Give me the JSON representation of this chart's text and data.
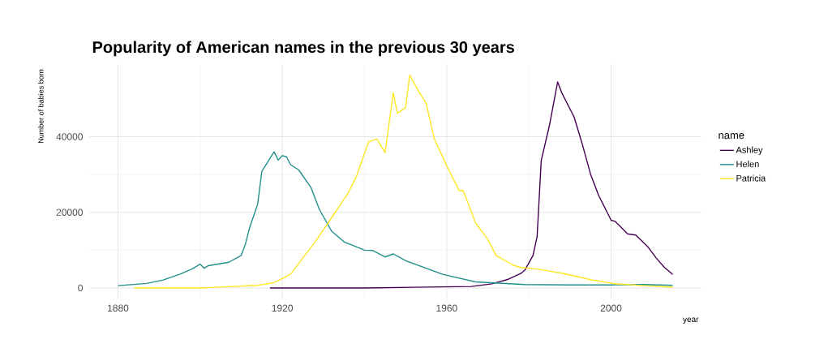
{
  "chart_data": {
    "type": "line",
    "title": "Popularity of American names in the previous 30 years",
    "xlabel": "year",
    "ylabel": "Number of babies born",
    "legend_title": "name",
    "legend": "right",
    "grid": true,
    "xlim": [
      1873,
      2022
    ],
    "ylim": [
      -2800,
      59200
    ],
    "xticks": [
      1880,
      1920,
      1960,
      2000
    ],
    "yticks": [
      0,
      20000,
      40000
    ],
    "series": [
      {
        "name": "Ashley",
        "color": "#440154",
        "x": [
          1917,
          1940,
          1966,
          1971,
          1975,
          1978,
          1979,
          1981,
          1982,
          1983,
          1985,
          1987,
          1988,
          1991,
          1993,
          1995,
          1997,
          1999,
          2000,
          2001,
          2004,
          2006,
          2009,
          2011,
          2013,
          2015
        ],
        "values": [
          0,
          0,
          400,
          1100,
          2300,
          3800,
          4700,
          8600,
          13600,
          33700,
          43000,
          54500,
          51600,
          45200,
          38000,
          30100,
          24400,
          20100,
          17900,
          17600,
          14300,
          14000,
          10800,
          7900,
          5400,
          3600
        ]
      },
      {
        "name": "Helen",
        "color": "#21908C",
        "x": [
          1880,
          1887,
          1891,
          1895,
          1898,
          1900,
          1901,
          1902,
          1907,
          1910,
          1911,
          1912,
          1914,
          1915,
          1918,
          1919,
          1920,
          1921,
          1922,
          1924,
          1927,
          1929,
          1932,
          1935,
          1940,
          1942,
          1945,
          1947,
          1950,
          1959,
          1967,
          1979,
          1990,
          2000,
          2008,
          2015
        ],
        "values": [
          600,
          1200,
          2100,
          3600,
          5000,
          6300,
          5200,
          5900,
          6800,
          8600,
          11500,
          15800,
          22200,
          30800,
          36000,
          33800,
          35000,
          34700,
          32600,
          31200,
          26500,
          20800,
          15000,
          12200,
          10000,
          9900,
          8200,
          9000,
          7200,
          3600,
          1600,
          900,
          800,
          800,
          900,
          700
        ]
      },
      {
        "name": "Patricia",
        "color": "#FDE725",
        "x": [
          1884,
          1900,
          1914,
          1918,
          1922,
          1924,
          1928,
          1932,
          1936,
          1938,
          1941,
          1943,
          1945,
          1947,
          1948,
          1950,
          1951,
          1953,
          1955,
          1957,
          1960,
          1963,
          1964,
          1967,
          1970,
          1972,
          1976,
          1978,
          1982,
          1988,
          1995,
          2001,
          2008,
          2015
        ],
        "values": [
          0,
          0,
          700,
          1400,
          3600,
          6500,
          12200,
          18600,
          25100,
          29400,
          38700,
          39400,
          35800,
          51600,
          46200,
          47700,
          56300,
          52300,
          48800,
          39400,
          32300,
          25800,
          25800,
          17200,
          12900,
          8600,
          6100,
          5400,
          5000,
          3900,
          2200,
          1100,
          600,
          200
        ]
      }
    ]
  }
}
